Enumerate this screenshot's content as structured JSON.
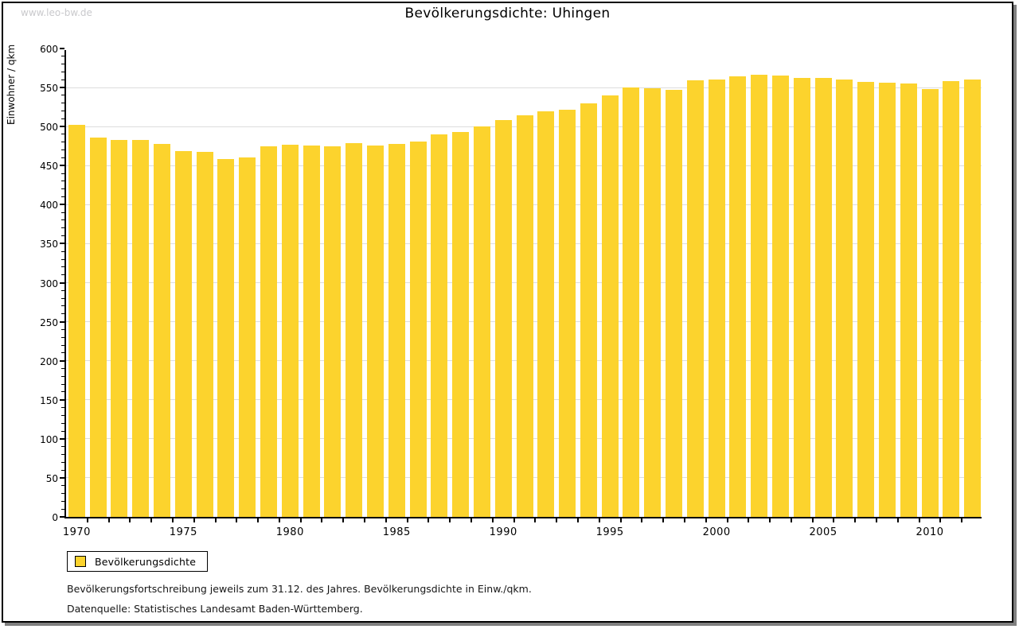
{
  "watermark": "www.leo-bw.de",
  "legend": {
    "label": "Bevölkerungsdichte"
  },
  "footnotes": [
    "Bevölkerungsfortschreibung jeweils zum 31.12. des Jahres. Bevölkerungsdichte in Einw./qkm.",
    "Datenquelle: Statistisches Landesamt Baden-Württemberg."
  ],
  "colors": {
    "bar": "#fcd32d",
    "grid": "#dddddd",
    "axis": "#000000",
    "watermark": "#c9c9cc",
    "frame_shadow": "#808080"
  },
  "chart_data": {
    "type": "bar",
    "title": "Bevölkerungsdichte: Uhingen",
    "xlabel": "",
    "ylabel": "Einwohner / qkm",
    "ylim": [
      0,
      600
    ],
    "y_major_step": 50,
    "y_minor_step": 10,
    "grid": "horizontal-major",
    "legend_position": "bottom-left",
    "x_tick_label_years": [
      1970,
      1975,
      1980,
      1985,
      1990,
      1995,
      2000,
      2005,
      2010
    ],
    "categories": [
      1970,
      1971,
      1972,
      1973,
      1974,
      1975,
      1976,
      1977,
      1978,
      1979,
      1980,
      1981,
      1982,
      1983,
      1984,
      1985,
      1986,
      1987,
      1988,
      1989,
      1990,
      1991,
      1992,
      1993,
      1994,
      1995,
      1996,
      1997,
      1998,
      1999,
      2000,
      2001,
      2002,
      2003,
      2004,
      2005,
      2006,
      2007,
      2008,
      2009,
      2010,
      2011,
      2012
    ],
    "values": [
      502,
      486,
      483,
      483,
      478,
      469,
      468,
      458,
      460,
      475,
      477,
      476,
      475,
      479,
      476,
      478,
      481,
      490,
      493,
      500,
      508,
      514,
      520,
      522,
      530,
      540,
      550,
      549,
      547,
      559,
      560,
      564,
      566,
      565,
      562,
      562,
      560,
      557,
      556,
      555,
      548,
      558,
      560
    ],
    "series_name": "Bevölkerungsdichte"
  }
}
